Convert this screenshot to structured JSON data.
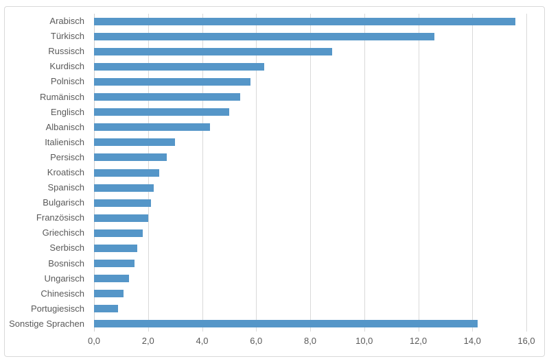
{
  "chart_data": {
    "type": "bar",
    "orientation": "horizontal",
    "title": "",
    "xlabel": "",
    "ylabel": "",
    "categories": [
      "Arabisch",
      "Türkisch",
      "Russisch",
      "Kurdisch",
      "Polnisch",
      "Rumänisch",
      "Englisch",
      "Albanisch",
      "Italienisch",
      "Persisch",
      "Kroatisch",
      "Spanisch",
      "Bulgarisch",
      "Französisch",
      "Griechisch",
      "Serbisch",
      "Bosnisch",
      "Ungarisch",
      "Chinesisch",
      "Portugiesisch",
      "Sonstige Sprachen"
    ],
    "values": [
      15.6,
      12.6,
      8.8,
      6.3,
      5.8,
      5.4,
      5.0,
      4.3,
      3.0,
      2.7,
      2.4,
      2.2,
      2.1,
      2.0,
      1.8,
      1.6,
      1.5,
      1.3,
      1.1,
      0.9,
      14.2
    ],
    "xlim": [
      0,
      16
    ],
    "x_tick_values": [
      0,
      2,
      4,
      6,
      8,
      10,
      12,
      14,
      16
    ],
    "x_tick_labels": [
      "0,0",
      "2,0",
      "4,0",
      "6,0",
      "8,0",
      "10,0",
      "12,0",
      "14,0",
      "16,0"
    ],
    "grid": "vertical-major",
    "legend": "none",
    "colors": {
      "bar": "#5596c8",
      "gridline": "#d9d9d9",
      "axis_line": "#cfcfcf",
      "axis_text": "#595959",
      "frame_border": "#d9d9d9",
      "background": "#ffffff"
    }
  }
}
